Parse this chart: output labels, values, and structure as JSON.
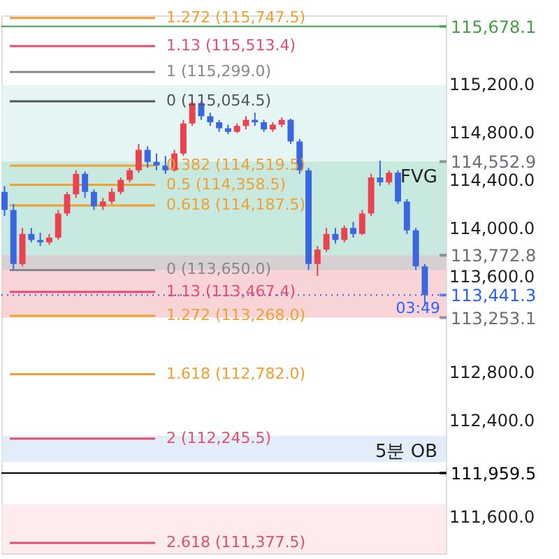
{
  "chart_data": {
    "type": "candlestick",
    "categories": [
      null,
      null,
      null,
      null,
      null,
      null,
      null,
      null,
      null,
      null,
      null,
      null,
      null,
      null,
      null,
      null,
      null,
      null,
      null,
      null,
      null,
      null,
      null,
      null,
      null,
      null,
      null,
      null,
      null,
      null,
      null,
      null,
      null,
      null,
      null,
      null,
      null,
      null,
      null,
      null,
      null,
      null,
      null,
      null,
      null,
      null,
      null,
      null
    ],
    "ohlc": [
      [
        114300,
        114350,
        114100,
        114150
      ],
      [
        114150,
        114200,
        113650,
        113700
      ],
      [
        113700,
        114000,
        113680,
        113950
      ],
      [
        113950,
        114000,
        113880,
        113900
      ],
      [
        113900,
        113960,
        113850,
        113880
      ],
      [
        113880,
        113950,
        113860,
        113920
      ],
      [
        113920,
        114150,
        113900,
        114120
      ],
      [
        114120,
        114300,
        114100,
        114280
      ],
      [
        114280,
        114480,
        114250,
        114450
      ],
      [
        114450,
        114470,
        114250,
        114300
      ],
      [
        114300,
        114320,
        114150,
        114180
      ],
      [
        114180,
        114250,
        114150,
        114220
      ],
      [
        114220,
        114330,
        114200,
        114300
      ],
      [
        114300,
        114420,
        114280,
        114400
      ],
      [
        114400,
        114500,
        114380,
        114480
      ],
      [
        114480,
        114700,
        114460,
        114650
      ],
      [
        114650,
        114680,
        114500,
        114550
      ],
      [
        114550,
        114620,
        114480,
        114520
      ],
      [
        114520,
        114600,
        114450,
        114480
      ],
      [
        114480,
        114650,
        114470,
        114620
      ],
      [
        114620,
        114900,
        114600,
        114870
      ],
      [
        114870,
        115060,
        114850,
        115040
      ],
      [
        115040,
        115055,
        114900,
        114930
      ],
      [
        114930,
        114960,
        114850,
        114880
      ],
      [
        114880,
        114900,
        114800,
        114830
      ],
      [
        114830,
        114860,
        114780,
        114800
      ],
      [
        114800,
        114870,
        114790,
        114850
      ],
      [
        114850,
        114930,
        114820,
        114900
      ],
      [
        114900,
        114960,
        114850,
        114880
      ],
      [
        114880,
        114900,
        114800,
        114820
      ],
      [
        114820,
        114880,
        114800,
        114860
      ],
      [
        114860,
        114920,
        114840,
        114900
      ],
      [
        114900,
        114910,
        114700,
        114720
      ],
      [
        114720,
        114740,
        114450,
        114480
      ],
      [
        114480,
        114500,
        113650,
        113700
      ],
      [
        113700,
        113850,
        113600,
        113820
      ],
      [
        113820,
        114000,
        113800,
        113950
      ],
      [
        113950,
        114000,
        113870,
        113900
      ],
      [
        113900,
        114020,
        113880,
        114000
      ],
      [
        114000,
        114050,
        113920,
        113950
      ],
      [
        113950,
        114150,
        113940,
        114120
      ],
      [
        114120,
        114450,
        114100,
        114420
      ],
      [
        114420,
        114560,
        114350,
        114380
      ],
      [
        114380,
        114480,
        114360,
        114460
      ],
      [
        114460,
        114480,
        114200,
        114220
      ],
      [
        114220,
        114240,
        113950,
        113980
      ],
      [
        113980,
        114000,
        113650,
        113680
      ],
      [
        113680,
        113700,
        113350,
        113441.3
      ]
    ],
    "ylim": [
      111290,
      115770
    ],
    "yticks": [
      {
        "value": 111600,
        "label": "111,600.0"
      },
      {
        "value": 112400,
        "label": "112,400.0"
      },
      {
        "value": 112800,
        "label": "112,800.0"
      },
      {
        "value": 113600,
        "label": "113,600.0"
      },
      {
        "value": 114000,
        "label": "114,000.0"
      },
      {
        "value": 114400,
        "label": "114,400.0"
      },
      {
        "value": 114800,
        "label": "114,800.0"
      },
      {
        "value": 115200,
        "label": "115,200.0"
      }
    ],
    "y2lim": [
      111290,
      115770
    ],
    "y2ticks": [
      {
        "value": 115678.1,
        "label": "115,678.1"
      },
      {
        "value": 114552.9,
        "label": "114,552.9"
      },
      {
        "value": 113772.8,
        "label": "113,772.8"
      },
      {
        "value": 113441.3,
        "label": "113,441.3"
      },
      {
        "value": 113253.1,
        "label": "113,253.1"
      },
      {
        "value": 111959.5,
        "label": "111,959.5"
      }
    ],
    "tick_labels": "y",
    "grid": false,
    "bands": [
      {
        "axis": "y",
        "from": 113650,
        "to": 115190,
        "color": "#dff3f1"
      },
      {
        "axis": "y",
        "from": 113772.8,
        "to": 114552.9,
        "label": "FVG",
        "color": "#bfe6da"
      },
      {
        "axis": "y",
        "from": 113253.1,
        "to": 113772.8,
        "color": "#f6c9cd"
      },
      {
        "axis": "y",
        "from": 113650,
        "to": 113772.8,
        "color": "#cfcfd2"
      },
      {
        "axis": "y",
        "from": 112050,
        "to": 112270,
        "label": "5분 OB",
        "color": "#dce9f8"
      },
      {
        "axis": "y",
        "from": 111290,
        "to": 111700,
        "color": "#fde6e8"
      }
    ],
    "ref_lines": [
      {
        "axis": "y",
        "value": 115747.5,
        "label": "1.272 (115,747.5)",
        "color": "#f0a030"
      },
      {
        "axis": "y",
        "value": 115513.4,
        "label": "1.13 (115,513.4)",
        "color": "#e0506e"
      },
      {
        "axis": "y",
        "value": 115299.0,
        "label": "1 (115,299.0)",
        "color": "#888888"
      },
      {
        "axis": "y",
        "value": 115054.5,
        "label": "0 (115,054.5)",
        "color": "#555555"
      },
      {
        "axis": "y",
        "value": 114519.5,
        "label": "0.382 (114,519.5)",
        "color": "#f0a030"
      },
      {
        "axis": "y",
        "value": 114358.5,
        "label": "0.5 (114,358.5)",
        "color": "#f0a030"
      },
      {
        "axis": "y",
        "value": 114187.5,
        "label": "0.618 (114,187.5)",
        "color": "#f0a030"
      },
      {
        "axis": "y",
        "value": 113650.0,
        "label": "0 (113,650.0)",
        "color": "#888888"
      },
      {
        "axis": "y",
        "value": 113467.4,
        "label": "1.13 (113,467.4)",
        "color": "#e0506e"
      },
      {
        "axis": "y",
        "value": 113268.0,
        "label": "1.272 (113,268.0)",
        "color": "#f0a030"
      },
      {
        "axis": "y",
        "value": 112782.0,
        "label": "1.618 (112,782.0)",
        "color": "#f0a030"
      },
      {
        "axis": "y",
        "value": 112245.5,
        "label": "2 (112,245.5)",
        "color": "#e0506e"
      },
      {
        "axis": "y",
        "value": 111377.5,
        "label": "2.618 (111,377.5)",
        "color": "#e0506e"
      },
      {
        "axis": "y",
        "value": 115678.1,
        "color": "#43a047"
      },
      {
        "axis": "y",
        "value": 113441.3,
        "color": "#2962ff",
        "line_style": "dotted"
      },
      {
        "axis": "y",
        "value": 111959.5,
        "color": "#000000"
      }
    ],
    "annotations": [
      "03:49"
    ]
  }
}
